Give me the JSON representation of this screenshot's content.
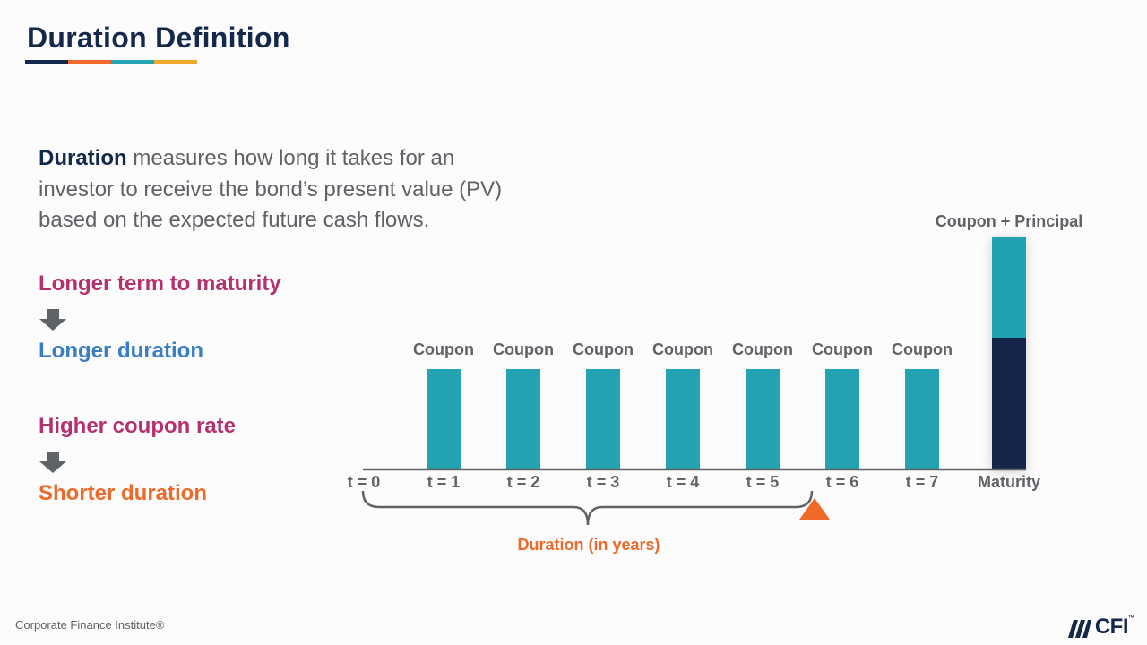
{
  "title": "Duration Definition",
  "title_rule_colors": [
    "#14284b",
    "#ef6a2a",
    "#23a2b1",
    "#f0a72f"
  ],
  "intro": {
    "bold": "Duration",
    "rest": " measures how long it takes for an investor to receive the bond’s present value (PV) based on the expected future cash flows."
  },
  "relations": [
    {
      "cause": "Longer term to maturity",
      "effect": "Longer duration",
      "cause_color": "#b5306e",
      "effect_color": "#3b7dc4"
    },
    {
      "cause": "Higher coupon rate",
      "effect": "Shorter duration",
      "cause_color": "#b5306e",
      "effect_color": "#ef6a2a"
    }
  ],
  "colors": {
    "teal": "#23a2b1",
    "navy": "#14284b",
    "orange": "#ef6a2a",
    "axis": "#5f6266",
    "label": "#5f6266"
  },
  "timeline": {
    "start_label": "t = 0",
    "periods": [
      {
        "label": "t = 1",
        "bar_label": "Coupon",
        "kind": "coupon"
      },
      {
        "label": "t = 2",
        "bar_label": "Coupon",
        "kind": "coupon"
      },
      {
        "label": "t = 3",
        "bar_label": "Coupon",
        "kind": "coupon"
      },
      {
        "label": "t = 4",
        "bar_label": "Coupon",
        "kind": "coupon"
      },
      {
        "label": "t = 5",
        "bar_label": "Coupon",
        "kind": "coupon"
      },
      {
        "label": "t = 6",
        "bar_label": "Coupon",
        "kind": "coupon"
      },
      {
        "label": "t = 7",
        "bar_label": "Coupon",
        "kind": "coupon"
      },
      {
        "label": "Maturity",
        "bar_label": "Coupon + Principal",
        "kind": "coupon+principal"
      }
    ],
    "duration_label": "Duration (in years)",
    "duration_marker_period": 6
  },
  "footer": {
    "left": "Corporate Finance Institute®",
    "logo_word": "CFI",
    "logo_tm": "™"
  }
}
